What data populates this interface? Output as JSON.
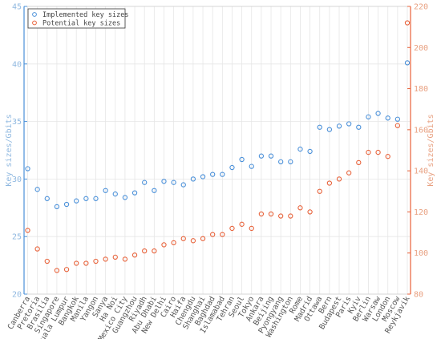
{
  "chart_data": {
    "type": "scatter",
    "categories": [
      "Canberra",
      "Pretoria",
      "Brasilia",
      "Singapore",
      "Kuala Lumpur",
      "Bangkok",
      "Manila",
      "Yangon",
      "Sanya",
      "Ha Noi",
      "Mexico City",
      "Guangzhou",
      "Riyadh",
      "Abu Dhabi",
      "New Delhi",
      "Cairo",
      "Haifa",
      "Chengdu",
      "Shanghai",
      "Baghdad",
      "Islamabad",
      "Tehran",
      "Seoul",
      "Tokyo",
      "Ankara",
      "Beijing",
      "Pyongyang",
      "Washington",
      "Rome",
      "Madrid",
      "Ottawa",
      "Bern",
      "Budapest",
      "Paris",
      "Kyiv",
      "Berlin",
      "Warsaw",
      "London",
      "Moscow",
      "Reykjavik"
    ],
    "series": [
      {
        "name": "Implemented key sizes",
        "axis": "left",
        "color": "#4a90d9",
        "values": [
          30.9,
          29.1,
          28.3,
          27.6,
          27.8,
          28.1,
          28.3,
          28.3,
          29.0,
          28.7,
          28.4,
          28.8,
          29.7,
          29.0,
          29.8,
          29.7,
          29.5,
          30.0,
          30.2,
          30.4,
          30.4,
          31.0,
          31.7,
          31.1,
          32.0,
          32.0,
          31.5,
          31.5,
          32.6,
          32.4,
          34.5,
          34.3,
          34.6,
          34.8,
          34.5,
          35.4,
          35.7,
          35.3,
          35.2,
          40.1
        ]
      },
      {
        "name": "Potential key sizes",
        "axis": "right",
        "color": "#e8623a",
        "values": [
          111,
          102,
          96,
          91.5,
          92,
          95,
          95,
          96,
          97,
          98,
          97,
          99,
          101,
          101,
          104,
          105,
          107,
          106,
          107,
          109,
          109,
          112,
          114,
          112,
          119,
          119,
          118,
          118,
          122,
          120,
          130,
          134,
          136,
          139,
          144,
          149,
          149,
          147,
          162,
          212
        ]
      }
    ],
    "y_left": {
      "label": "Key sizes/Gbits",
      "ylim": [
        20,
        45
      ],
      "ticks": [
        20,
        25,
        30,
        35,
        40,
        45
      ],
      "color": "#8fb8e0"
    },
    "y_right": {
      "label": "Key sizes/Gbits",
      "ylim": [
        80,
        220
      ],
      "ticks": [
        80,
        100,
        120,
        140,
        160,
        180,
        200,
        220
      ],
      "color": "#e8a080"
    },
    "grid": true,
    "legend_position": "top-left"
  }
}
